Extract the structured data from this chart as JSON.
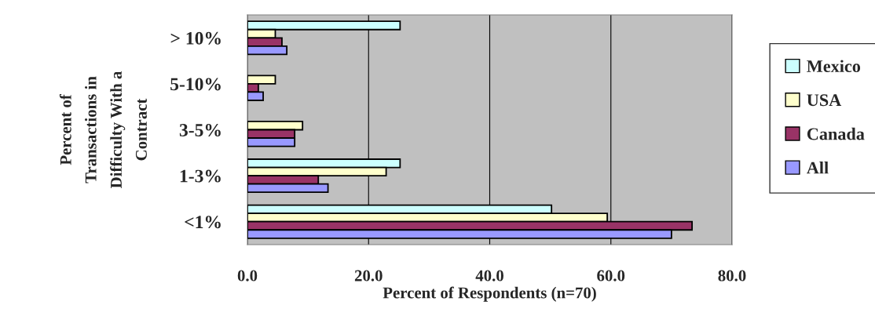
{
  "chart_data": {
    "type": "bar",
    "orientation": "horizontal",
    "categories": [
      "> 10%",
      "5-10%",
      "3-5%",
      "1-3%",
      "<1%"
    ],
    "series": [
      {
        "name": "Mexico",
        "color": "#ccffff",
        "values": [
          25.2,
          null,
          null,
          25.2,
          50.2
        ]
      },
      {
        "name": "USA",
        "color": "#ffffcc",
        "values": [
          4.6,
          4.6,
          9.1,
          22.9,
          59.4
        ]
      },
      {
        "name": "Canada",
        "color": "#993366",
        "values": [
          5.7,
          1.8,
          7.8,
          11.7,
          73.4
        ]
      },
      {
        "name": "All",
        "color": "#9999ff",
        "values": [
          6.5,
          2.6,
          7.8,
          13.3,
          70.0
        ]
      }
    ],
    "xlabel": "Percent of Respondents (n=70)",
    "ylabel": "Percent of\nTransactions in\nDifficulty With a\nContract",
    "xlim": [
      0,
      80
    ],
    "xticks": [
      {
        "value": 0,
        "label": "0.0"
      },
      {
        "value": 20,
        "label": "20.0"
      },
      {
        "value": 40,
        "label": "40.0"
      },
      {
        "value": 60,
        "label": "60.0"
      },
      {
        "value": 80,
        "label": "80.0"
      }
    ],
    "grid": "x",
    "legend": "right"
  }
}
